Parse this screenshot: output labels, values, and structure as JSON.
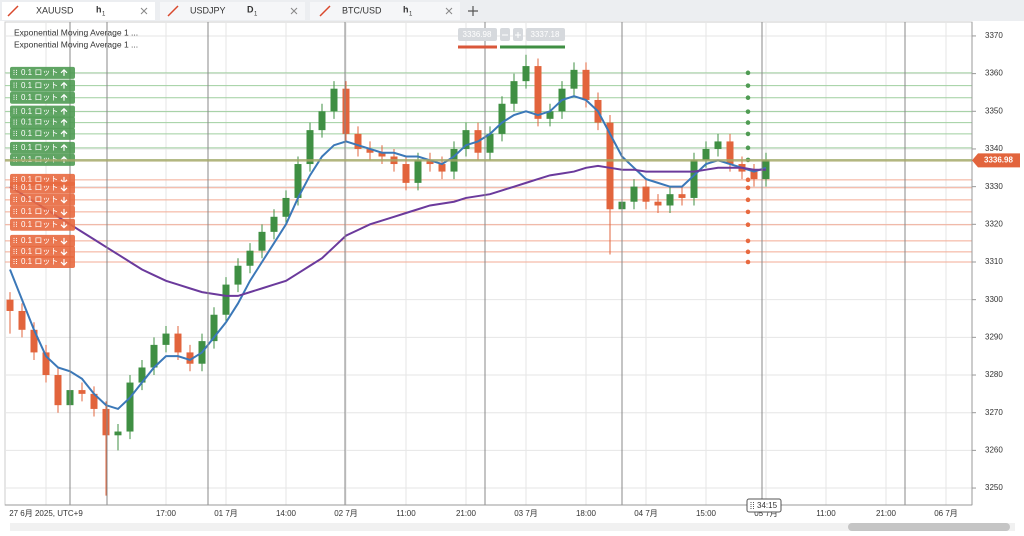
{
  "tabs": [
    {
      "symbol": "XAUUSD",
      "timeframe": "h",
      "interval": "1"
    },
    {
      "symbol": "USDJPY",
      "timeframe": "D",
      "interval": "1"
    },
    {
      "symbol": "BTC/USD",
      "timeframe": "h",
      "interval": "1"
    }
  ],
  "chart_data": {
    "type": "candlestick",
    "categories": [
      null,
      null,
      null,
      "27 6月 2025, UTC+9",
      null,
      null,
      null,
      null,
      null,
      null,
      null,
      null,
      null,
      "17:00",
      null,
      null,
      null,
      null,
      "01 7月",
      null,
      null,
      null,
      null,
      "14:00",
      null,
      null,
      null,
      null,
      "02 7月",
      null,
      null,
      null,
      null,
      "11:00",
      null,
      null,
      null,
      null,
      "21:00",
      null,
      null,
      null,
      null,
      "03 7月",
      null,
      null,
      null,
      null,
      "18:00",
      null,
      null,
      null,
      null,
      "04 7月",
      null,
      null,
      null,
      null,
      "15:00",
      null,
      null,
      null,
      null,
      "05 7月",
      null,
      null,
      null,
      null,
      "11:00",
      null,
      null,
      null,
      null,
      "21:00",
      null,
      null,
      null,
      null,
      "06 7月"
    ],
    "open": [
      3300,
      3297,
      3292,
      3286,
      3280,
      3272,
      3276,
      3275,
      3271,
      3264,
      3265,
      3278,
      3282,
      3288,
      3291,
      3286,
      3283,
      3289,
      3296,
      3304,
      3309,
      3313,
      3318,
      3322,
      3327,
      3336,
      3345,
      3350,
      3356,
      3344,
      3340,
      3339,
      3338,
      3336,
      3331,
      3337,
      3336,
      3334,
      3340,
      3345,
      3339,
      3344,
      3352,
      3358,
      3362,
      3348,
      3350,
      3356,
      3361,
      3353,
      3347,
      3324,
      3326,
      3330,
      3326,
      3325,
      3328,
      3327,
      3337,
      3340,
      3342,
      3336,
      3334,
      3332,
      null,
      null,
      null,
      null,
      null,
      null,
      null,
      null,
      null,
      null,
      null,
      null,
      null,
      null,
      null
    ],
    "high": [
      3302,
      3299,
      3294,
      3288,
      3282,
      3278,
      3278,
      3277,
      3273,
      3267,
      3280,
      3284,
      3290,
      3293,
      3293,
      3288,
      3291,
      3298,
      3306,
      3311,
      3315,
      3320,
      3324,
      3329,
      3338,
      3347,
      3352,
      3358,
      3358,
      3346,
      3342,
      3341,
      3340,
      3338,
      3339,
      3339,
      3338,
      3342,
      3347,
      3347,
      3346,
      3354,
      3360,
      3365,
      3364,
      3352,
      3358,
      3363,
      3363,
      3355,
      3349,
      3328,
      3332,
      3332,
      3328,
      3330,
      3330,
      3339,
      3342,
      3344,
      3344,
      3338,
      3336,
      3339,
      null,
      null,
      null,
      null,
      null,
      null,
      null,
      null,
      null,
      null,
      null,
      null,
      null,
      null,
      null
    ],
    "low": [
      3291,
      3290,
      3284,
      3278,
      3270,
      3270,
      3273,
      3269,
      3248,
      3260,
      3263,
      3276,
      3280,
      3286,
      3284,
      3281,
      3281,
      3287,
      3294,
      3302,
      3307,
      3311,
      3316,
      3320,
      3325,
      3334,
      3343,
      3348,
      3342,
      3338,
      3337,
      3336,
      3334,
      3329,
      3329,
      3334,
      3332,
      3332,
      3338,
      3337,
      3337,
      3342,
      3350,
      3356,
      3346,
      3346,
      3348,
      3354,
      3351,
      3345,
      3312,
      3322,
      3324,
      3324,
      3323,
      3323,
      3325,
      3325,
      3335,
      3338,
      3334,
      3332,
      3330,
      3330,
      null,
      null,
      null,
      null,
      null,
      null,
      null,
      null,
      null,
      null,
      null,
      null,
      null,
      null,
      null
    ],
    "close": [
      3297,
      3292,
      3286,
      3280,
      3272,
      3276,
      3275,
      3271,
      3264,
      3265,
      3278,
      3282,
      3288,
      3291,
      3286,
      3283,
      3289,
      3296,
      3304,
      3309,
      3313,
      3318,
      3322,
      3327,
      3336,
      3345,
      3350,
      3356,
      3344,
      3340,
      3339,
      3338,
      3336,
      3331,
      3337,
      3336,
      3334,
      3340,
      3345,
      3339,
      3344,
      3352,
      3358,
      3362,
      3348,
      3350,
      3356,
      3361,
      3353,
      3347,
      3324,
      3326,
      3330,
      3326,
      3325,
      3328,
      3327,
      3337,
      3340,
      3342,
      3336,
      3334,
      3332,
      3336.98,
      null,
      null,
      null,
      null,
      null,
      null,
      null,
      null,
      null,
      null,
      null,
      null,
      null,
      null,
      null
    ],
    "up_color": "#3f8f43",
    "down_color": "#e2643c",
    "series": [
      {
        "name": "Exponential Moving Average 1 ...",
        "color": "#3b78b8",
        "values": [
          3308,
          3300,
          3292,
          3285,
          3282,
          3281,
          3279,
          3275,
          3272,
          3271,
          3274,
          3278,
          3282,
          3285,
          3285,
          3284,
          3286,
          3290,
          3294,
          3299,
          3305,
          3310,
          3315,
          3320,
          3327,
          3333,
          3338,
          3341,
          3342,
          3341,
          3340,
          3339,
          3339,
          3338,
          3338,
          3337,
          3336,
          3338,
          3341,
          3342,
          3344,
          3347,
          3349,
          3350,
          3349,
          3350,
          3353,
          3354,
          3353,
          3350,
          3344,
          3338,
          3335,
          3332,
          3331,
          3330,
          3330,
          3333,
          3336,
          3337,
          3336,
          3335,
          3334,
          3335,
          null,
          null,
          null,
          null,
          null,
          null,
          null,
          null,
          null,
          null,
          null,
          null,
          null,
          null,
          null
        ]
      },
      {
        "name": "Exponential Moving Average 1 ...",
        "color": "#6b3a9c",
        "values": [
          3330,
          3328,
          3326,
          3324,
          3322,
          3320,
          3318,
          3316,
          3314,
          3312,
          3310,
          3308,
          3306.5,
          3305,
          3304,
          3303,
          3302,
          3301.5,
          3301,
          3301,
          3302,
          3303,
          3304,
          3305,
          3307,
          3309,
          3311,
          3314,
          3317,
          3318.5,
          3320,
          3321,
          3322,
          3323,
          3324,
          3325,
          3325.5,
          3326,
          3327,
          3327.5,
          3328,
          3329,
          3330,
          3331,
          3332,
          3333,
          3333.5,
          3334,
          3335,
          3335.5,
          3335,
          3334.5,
          3334.5,
          3334,
          3334,
          3334,
          3334,
          3334,
          3334.5,
          3335,
          3335,
          3335,
          3334.5,
          3334.5,
          null,
          null,
          null,
          null,
          null,
          null,
          null,
          null,
          null,
          null,
          null,
          null,
          null,
          null,
          null
        ]
      }
    ],
    "ylim": [
      3245.5,
      3373.7
    ],
    "yticks": [
      3250,
      3260,
      3270,
      3280,
      3290,
      3300,
      3310,
      3320,
      3330,
      3340,
      3350,
      3360,
      3370
    ],
    "grid": true,
    "last_price": 3336.98,
    "bid": 3336.98,
    "ask": 3337.18,
    "countdown": "34:15",
    "order_label": "0.1 ロット",
    "buy_orders": {
      "color": "#4f9b53",
      "prices": [
        3360.2,
        3356.8,
        3353.6,
        3349.9,
        3347,
        3344,
        3340.3,
        3337.1
      ]
    },
    "sell_orders": {
      "color": "#e8693f",
      "prices": [
        3331.8,
        3329.7,
        3326.5,
        3323.3,
        3319.9,
        3315.6,
        3312.7,
        3310
      ]
    }
  }
}
